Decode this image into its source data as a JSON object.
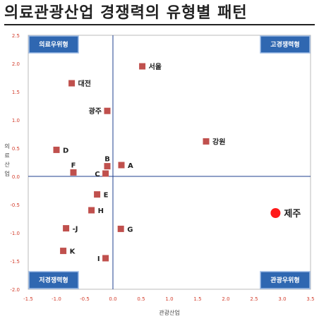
{
  "header": {
    "title": "의료관광산업 경쟁력의 유형별 패턴"
  },
  "chart_data": {
    "type": "scatter",
    "xlabel": "관광산업",
    "ylabel": "의료산업",
    "xlim": [
      -1.5,
      3.5
    ],
    "ylim": [
      -2.0,
      2.5
    ],
    "xticks": [
      "-1.5",
      "-1.0",
      "-0.5",
      "0.0",
      "0.5",
      "1.0",
      "1.5",
      "2.0",
      "2.5",
      "3.0",
      "3.5"
    ],
    "yticks": [
      "-2.0",
      "-1.5",
      "-1.0",
      "-0.5",
      "0.0",
      "0.5",
      "1.0",
      "1.5",
      "2.0",
      "2.5"
    ],
    "quadrants": {
      "top_left": "의료우위형",
      "top_right": "고경쟁력형",
      "bottom_left": "저경쟁력형",
      "bottom_right": "관광우위형"
    },
    "points": [
      {
        "label": "서울",
        "x": 0.52,
        "y": 1.95,
        "label_pos": "right"
      },
      {
        "label": "대전",
        "x": -0.73,
        "y": 1.65,
        "label_pos": "right"
      },
      {
        "label": "광주",
        "x": -0.1,
        "y": 1.16,
        "label_pos": "left"
      },
      {
        "label": "강원",
        "x": 1.65,
        "y": 0.62,
        "label_pos": "right"
      },
      {
        "label": "D",
        "x": -1.0,
        "y": 0.47,
        "label_pos": "right"
      },
      {
        "label": "B",
        "x": -0.1,
        "y": 0.18,
        "label_pos": "above"
      },
      {
        "label": "A",
        "x": 0.15,
        "y": 0.2,
        "label_pos": "right"
      },
      {
        "label": "F",
        "x": -0.7,
        "y": 0.07,
        "label_pos": "above"
      },
      {
        "label": "C",
        "x": -0.13,
        "y": 0.05,
        "label_pos": "left"
      },
      {
        "label": "E",
        "x": -0.28,
        "y": -0.32,
        "label_pos": "right"
      },
      {
        "label": "H",
        "x": -0.38,
        "y": -0.6,
        "label_pos": "right"
      },
      {
        "label": "-J",
        "x": -0.83,
        "y": -0.92,
        "label_pos": "right"
      },
      {
        "label": "G",
        "x": 0.14,
        "y": -0.93,
        "label_pos": "right"
      },
      {
        "label": "K",
        "x": -0.88,
        "y": -1.32,
        "label_pos": "right"
      },
      {
        "label": "I",
        "x": -0.13,
        "y": -1.45,
        "label_pos": "left"
      },
      {
        "label": "제주",
        "x": 2.88,
        "y": -0.65,
        "label_pos": "right",
        "highlight": true
      }
    ],
    "colors": {
      "marker": "#c0504d",
      "highlight": "#ff1a1a",
      "axis": "#1f3f8f",
      "tick": "#d23b2a"
    }
  }
}
